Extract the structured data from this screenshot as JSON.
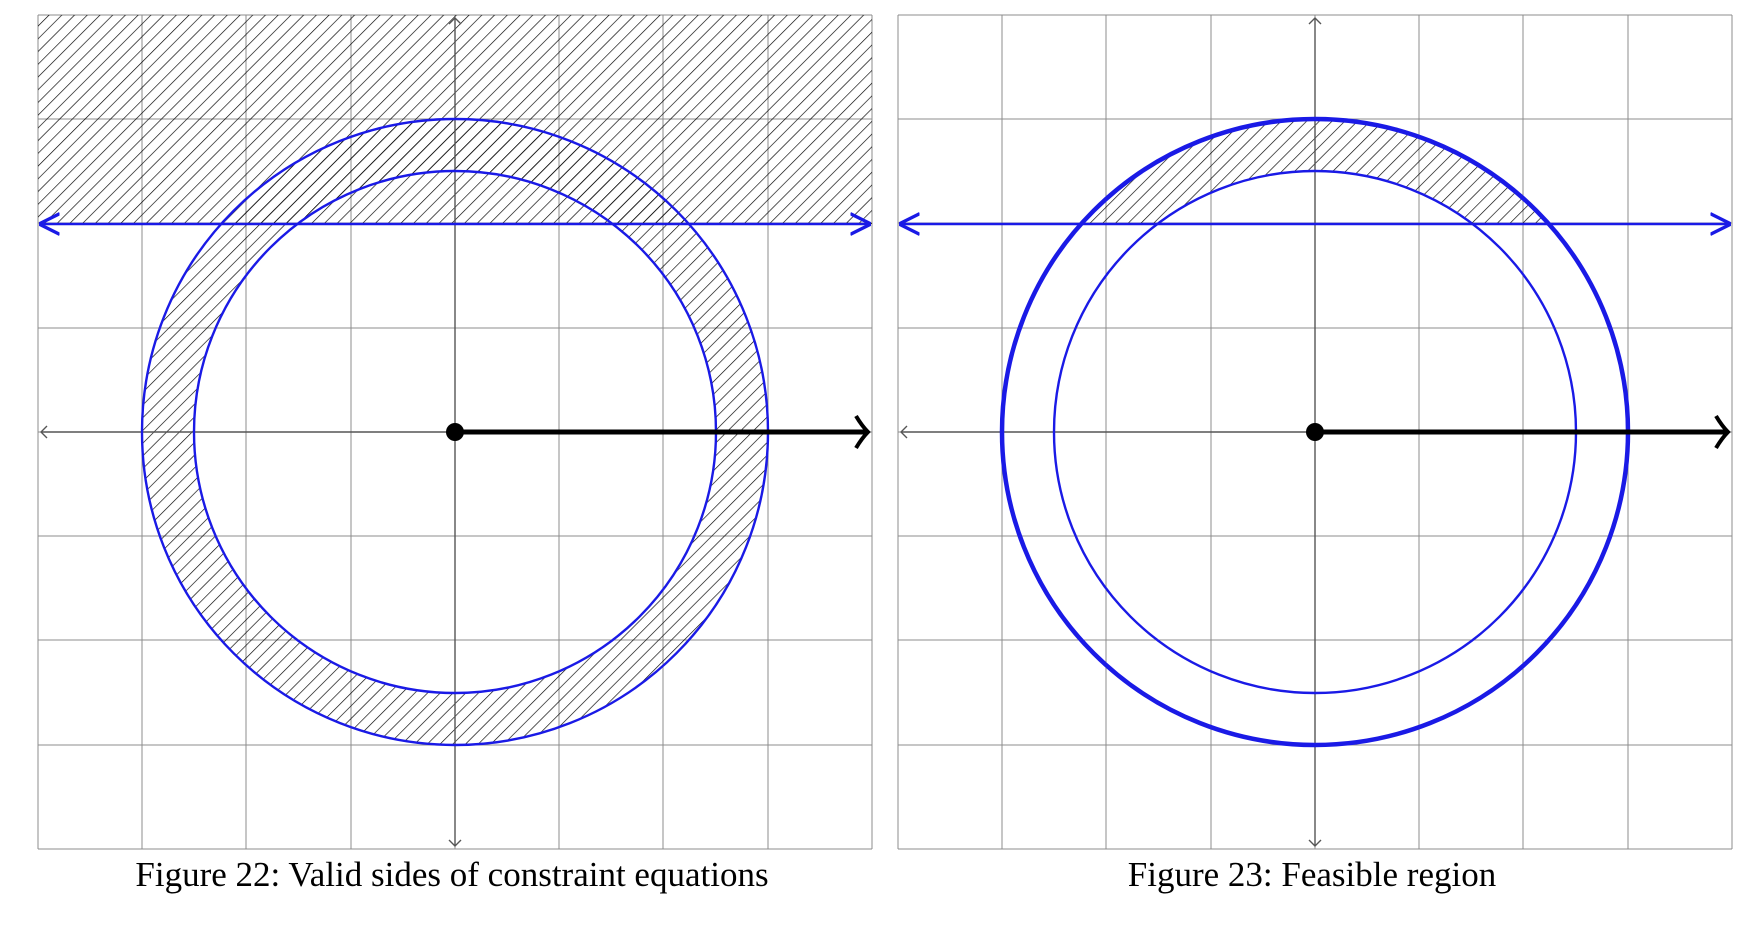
{
  "figures": [
    {
      "id": "fig22",
      "caption": "Figure 22: Valid sides of constraint equations"
    },
    {
      "id": "fig23",
      "caption": "Figure 23: Feasible region"
    }
  ],
  "colors": {
    "grid": "#8c8c8c",
    "axis": "#555555",
    "constraint": "#1a1ae6",
    "hatch": "#000000",
    "vector": "#000000"
  }
}
